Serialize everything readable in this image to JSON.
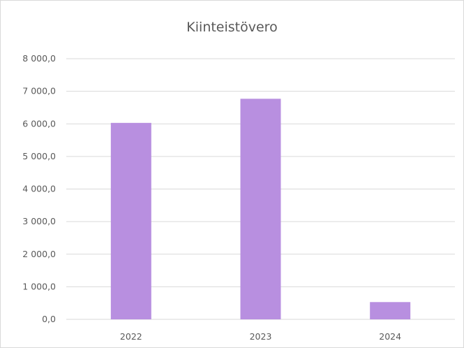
{
  "chart_data": {
    "type": "bar",
    "title": "Kiinteistövero",
    "xlabel": "",
    "ylabel": "",
    "categories": [
      "2022",
      "2023",
      "2024"
    ],
    "series": [
      {
        "values": [
          6030,
          6770,
          530
        ]
      }
    ],
    "ylim": [
      0,
      8000
    ],
    "yticks": [
      0,
      1000,
      2000,
      3000,
      4000,
      5000,
      6000,
      7000,
      8000
    ],
    "ytick_labels": [
      "0,0",
      "1 000,0",
      "2 000,0",
      "3 000,0",
      "4 000,0",
      "5 000,0",
      "6 000,0",
      "7 000,0",
      "8 000,0"
    ],
    "grid": true,
    "legend": "none",
    "colors": {
      "bar": "#b88fe0",
      "grid": "#d9d9d9",
      "text": "#595959"
    }
  }
}
